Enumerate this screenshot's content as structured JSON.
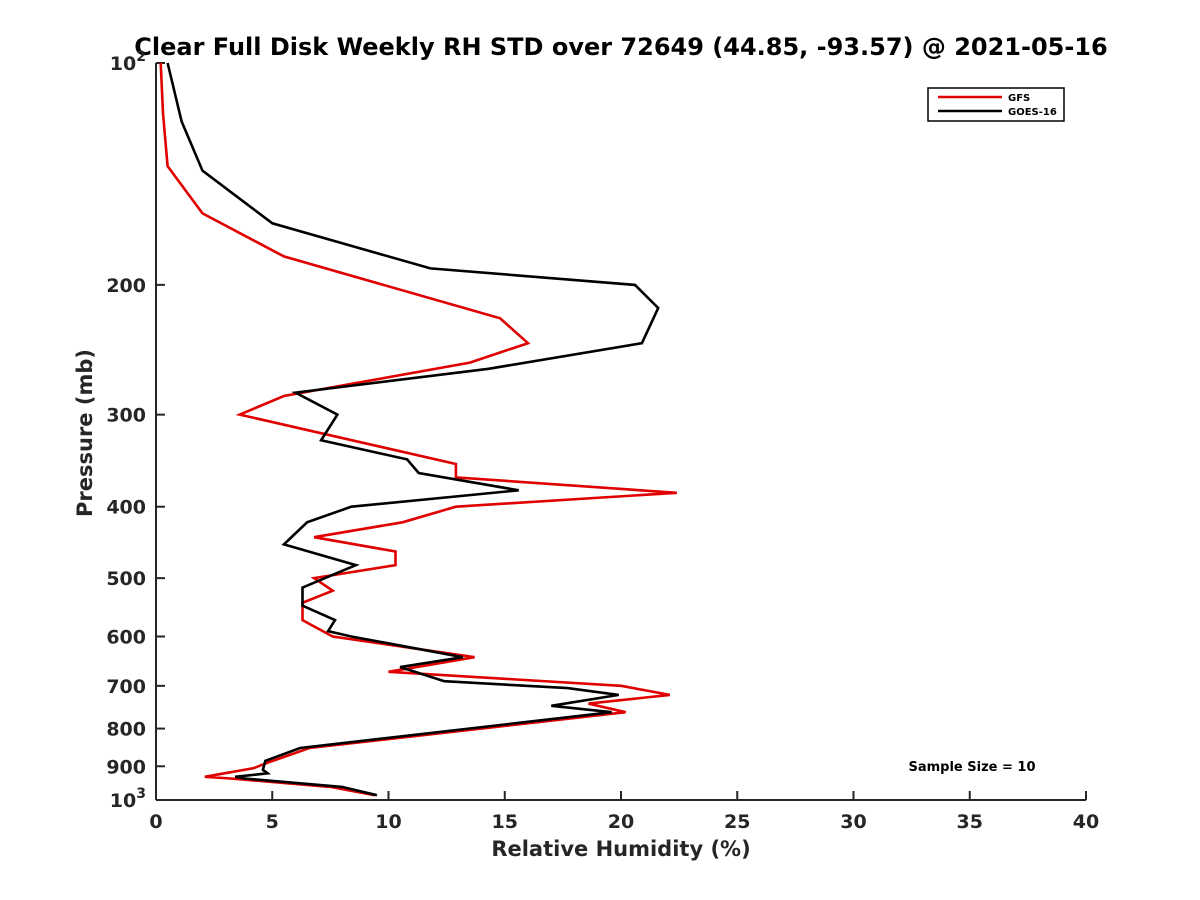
{
  "chart_data": {
    "type": "line",
    "title": "Clear Full Disk Weekly RH STD over 72649 (44.85, -93.57) @ 2021-05-16",
    "xlabel": "Relative Humidity (%)",
    "ylabel": "Pressure (mb)",
    "xlim": [
      0,
      40
    ],
    "ylim": [
      100,
      1000
    ],
    "y_scale": "log",
    "y_reversed": true,
    "grid": false,
    "legend_position": "top-right",
    "annotation": "Sample Size = 10",
    "x_ticks": [
      {
        "value": 0,
        "label": "0"
      },
      {
        "value": 5,
        "label": "5"
      },
      {
        "value": 10,
        "label": "10"
      },
      {
        "value": 15,
        "label": "15"
      },
      {
        "value": 20,
        "label": "20"
      },
      {
        "value": 25,
        "label": "25"
      },
      {
        "value": 30,
        "label": "30"
      },
      {
        "value": 35,
        "label": "35"
      },
      {
        "value": 40,
        "label": "40"
      }
    ],
    "y_ticks": [
      {
        "value": 100,
        "base": "10",
        "exp": "2"
      },
      {
        "value": 200,
        "label": "200"
      },
      {
        "value": 300,
        "label": "300"
      },
      {
        "value": 400,
        "label": "400"
      },
      {
        "value": 500,
        "label": "500"
      },
      {
        "value": 600,
        "label": "600"
      },
      {
        "value": 700,
        "label": "700"
      },
      {
        "value": 800,
        "label": "800"
      },
      {
        "value": 900,
        "label": "900"
      },
      {
        "value": 1000,
        "base": "10",
        "exp": "3"
      }
    ],
    "series": [
      {
        "name": "GFS",
        "color": "#e00000",
        "points": [
          [
            0.2,
            100
          ],
          [
            0.3,
            117
          ],
          [
            0.5,
            138
          ],
          [
            2.0,
            160
          ],
          [
            5.5,
            183
          ],
          [
            14.8,
            222
          ],
          [
            16.0,
            240
          ],
          [
            13.5,
            255
          ],
          [
            5.5,
            283
          ],
          [
            3.6,
            300
          ],
          [
            12.9,
            350
          ],
          [
            12.9,
            365
          ],
          [
            22.4,
            383
          ],
          [
            12.9,
            400
          ],
          [
            10.6,
            420
          ],
          [
            6.8,
            440
          ],
          [
            10.3,
            460
          ],
          [
            10.3,
            480
          ],
          [
            6.8,
            500
          ],
          [
            7.6,
            520
          ],
          [
            6.3,
            540
          ],
          [
            6.3,
            570
          ],
          [
            7.6,
            600
          ],
          [
            13.7,
            640
          ],
          [
            10.0,
            670
          ],
          [
            20.0,
            700
          ],
          [
            22.1,
            720
          ],
          [
            18.6,
            740
          ],
          [
            20.2,
            760
          ],
          [
            6.6,
            850
          ],
          [
            4.8,
            890
          ],
          [
            4.2,
            905
          ],
          [
            2.1,
            930
          ],
          [
            3.2,
            935
          ],
          [
            7.5,
            960
          ],
          [
            9.4,
            985
          ]
        ]
      },
      {
        "name": "GOES-16",
        "color": "#000000",
        "points": [
          [
            0.5,
            100
          ],
          [
            1.1,
            120
          ],
          [
            2.0,
            140
          ],
          [
            5.0,
            165
          ],
          [
            11.8,
            190
          ],
          [
            20.6,
            200
          ],
          [
            21.6,
            215
          ],
          [
            20.9,
            240
          ],
          [
            14.3,
            260
          ],
          [
            6.0,
            280
          ],
          [
            7.8,
            300
          ],
          [
            7.1,
            325
          ],
          [
            10.8,
            345
          ],
          [
            11.3,
            360
          ],
          [
            15.6,
            380
          ],
          [
            8.4,
            400
          ],
          [
            6.5,
            420
          ],
          [
            5.5,
            450
          ],
          [
            8.6,
            480
          ],
          [
            6.3,
            515
          ],
          [
            6.3,
            545
          ],
          [
            7.7,
            570
          ],
          [
            7.4,
            590
          ],
          [
            8.4,
            600
          ],
          [
            13.2,
            640
          ],
          [
            10.5,
            660
          ],
          [
            12.4,
            690
          ],
          [
            17.7,
            705
          ],
          [
            19.9,
            720
          ],
          [
            17.0,
            745
          ],
          [
            19.6,
            760
          ],
          [
            6.2,
            850
          ],
          [
            4.7,
            885
          ],
          [
            4.6,
            910
          ],
          [
            4.8,
            920
          ],
          [
            3.4,
            930
          ],
          [
            3.8,
            935
          ],
          [
            8.0,
            960
          ],
          [
            9.5,
            985
          ]
        ]
      }
    ]
  }
}
